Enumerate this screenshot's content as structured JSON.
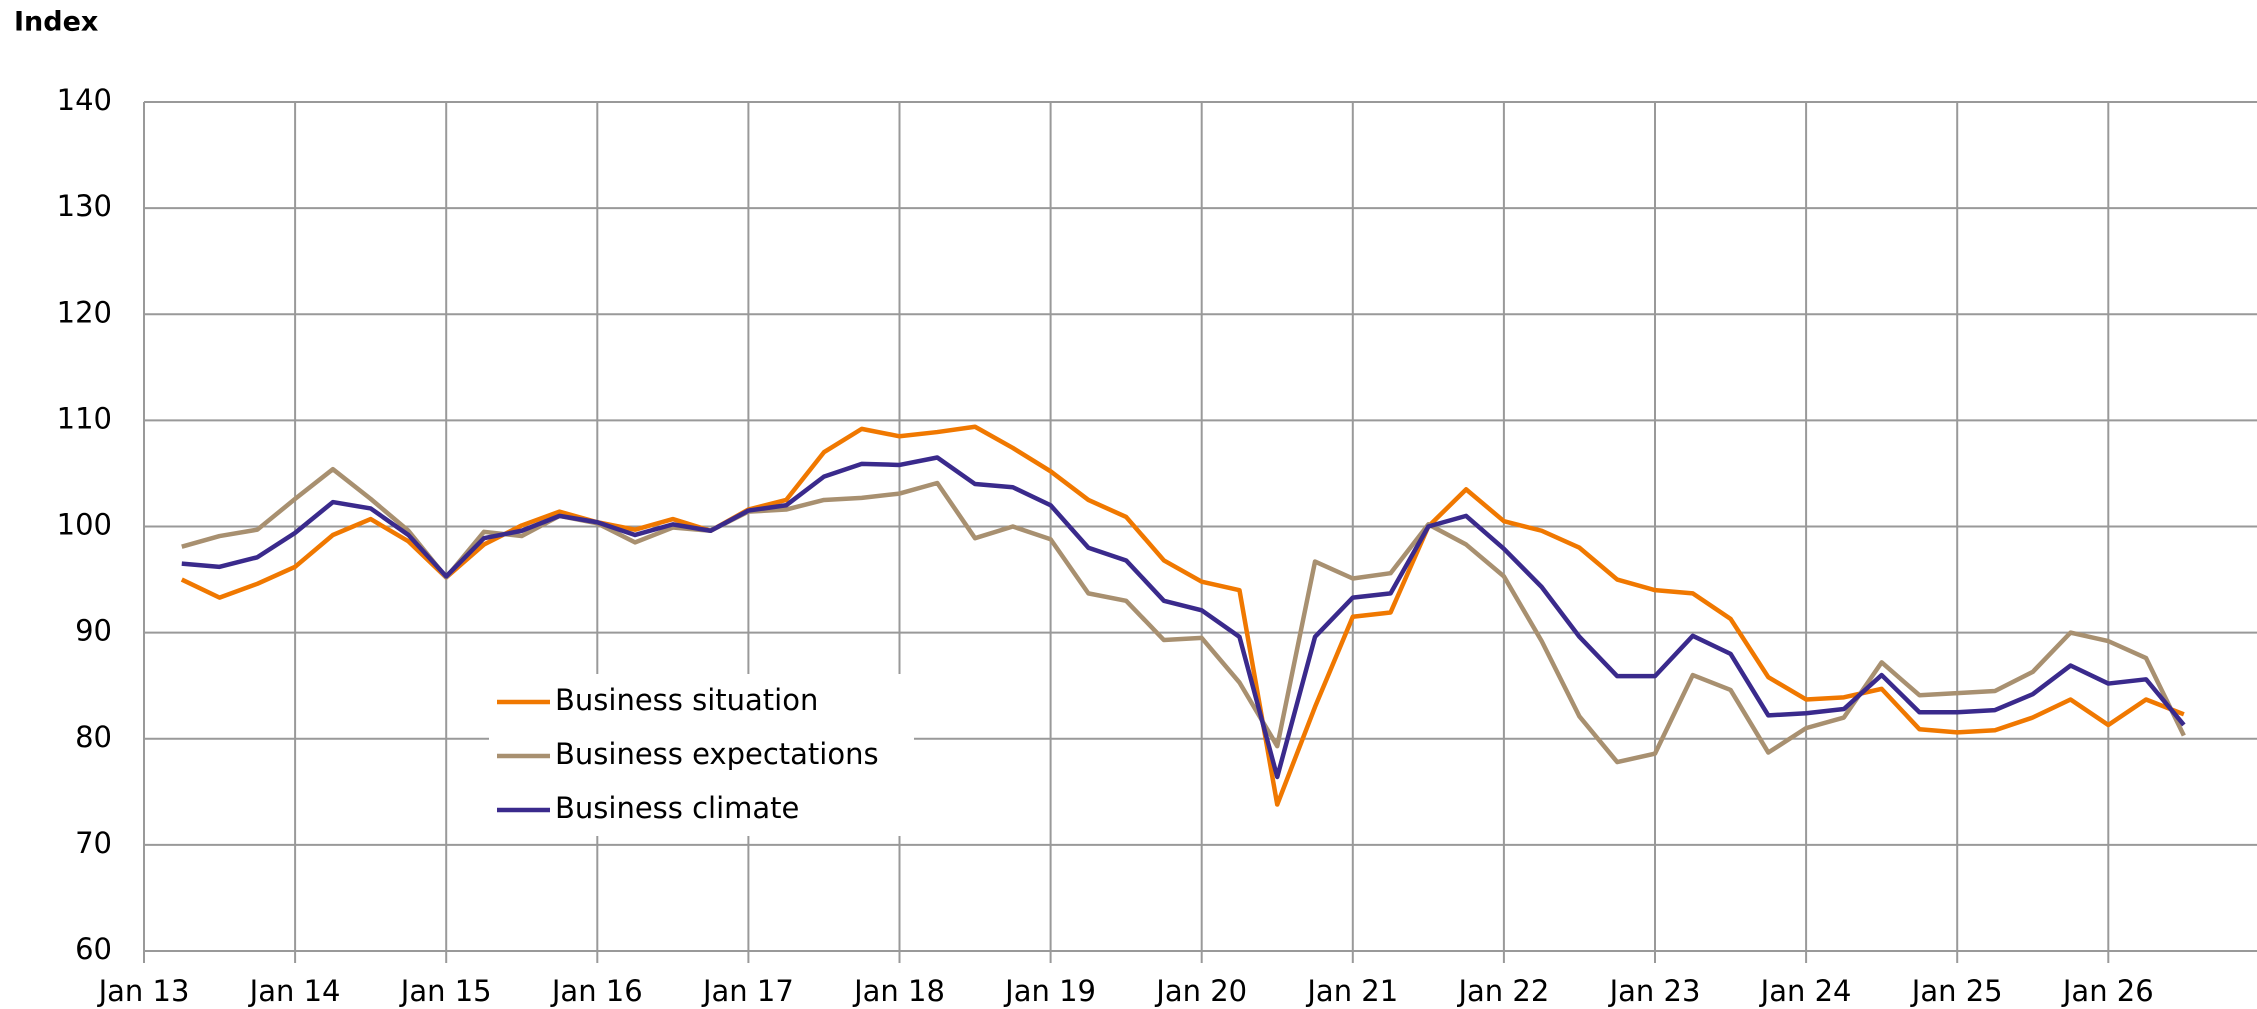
{
  "chart_data": {
    "type": "line",
    "y_axis_label": "Index",
    "x": [
      2013.25,
      2013.5,
      2013.75,
      2014,
      2014.25,
      2014.5,
      2014.75,
      2015,
      2015.25,
      2015.5,
      2015.75,
      2016,
      2016.25,
      2016.5,
      2016.75,
      2017,
      2017.25,
      2017.5,
      2017.75,
      2018,
      2018.25,
      2018.5,
      2018.75,
      2019,
      2019.25,
      2019.5,
      2019.75,
      2020,
      2020.25,
      2020.5,
      2020.75,
      2021,
      2021.25,
      2021.5,
      2021.75,
      2022,
      2022.25,
      2022.5,
      2022.75,
      2023,
      2023.25,
      2023.5,
      2023.75,
      2024,
      2024.25,
      2024.5,
      2024.75,
      2025,
      2025.25,
      2025.5,
      2025.75,
      2026,
      2026.25,
      2026.5
    ],
    "series": [
      {
        "name": "Business situation",
        "color": "#f07800",
        "values": [
          95,
          93.3,
          94.6,
          96.2,
          99.2,
          100.7,
          98.6,
          95.2,
          98.3,
          100.1,
          101.4,
          100.4,
          99.7,
          100.7,
          99.6,
          101.6,
          102.5,
          107,
          109.2,
          108.5,
          108.9,
          109.4,
          107.4,
          105.2,
          102.5,
          100.9,
          96.8,
          94.8,
          94,
          73.8,
          83,
          91.5,
          91.9,
          100,
          103.5,
          100.5,
          99.6,
          98,
          95,
          94,
          93.7,
          91.3,
          85.8,
          83.7,
          83.9,
          84.7,
          80.9,
          80.6,
          80.8,
          82,
          83.7,
          81.3,
          83.7,
          82.3
        ]
      },
      {
        "name": "Business expectations",
        "color": "#a89070",
        "values": [
          98.1,
          99.1,
          99.7,
          102.6,
          105.4,
          102.6,
          99.6,
          95.2,
          99.5,
          99.1,
          101,
          100.3,
          98.5,
          99.9,
          99.6,
          101.4,
          101.6,
          102.5,
          102.7,
          103.1,
          104.1,
          98.9,
          100,
          98.8,
          93.7,
          93,
          89.3,
          89.5,
          85.3,
          79.3,
          96.7,
          95.1,
          95.6,
          100.2,
          98.3,
          95.3,
          89.2,
          82.1,
          77.8,
          78.6,
          86,
          84.6,
          78.7,
          81,
          82,
          87.2,
          84.1,
          84.3,
          84.5,
          86.3,
          90,
          89.2,
          87.6,
          80.3
        ]
      },
      {
        "name": "Business climate",
        "color": "#3a2a8c",
        "values": [
          96.5,
          96.2,
          97.1,
          99.4,
          102.3,
          101.7,
          99.2,
          95.3,
          98.9,
          99.6,
          101,
          100.4,
          99.2,
          100.2,
          99.6,
          101.5,
          102,
          104.7,
          105.9,
          105.8,
          106.5,
          104,
          103.7,
          102,
          98,
          96.8,
          93,
          92.1,
          89.6,
          76.4,
          89.6,
          93.3,
          93.7,
          100,
          101,
          97.9,
          94.3,
          89.6,
          85.9,
          85.9,
          89.7,
          88,
          82.2,
          82.4,
          82.8,
          86,
          82.5,
          82.5,
          82.7,
          84.2,
          86.9,
          85.2,
          85.6,
          81.3
        ]
      }
    ],
    "xlim": [
      2013,
      2027
    ],
    "xticks": [
      {
        "value": 2013,
        "label": "Jan 13"
      },
      {
        "value": 2014,
        "label": "Jan 14"
      },
      {
        "value": 2015,
        "label": "Jan 15"
      },
      {
        "value": 2016,
        "label": "Jan 16"
      },
      {
        "value": 2017,
        "label": "Jan 17"
      },
      {
        "value": 2018,
        "label": "Jan 18"
      },
      {
        "value": 2019,
        "label": "Jan 19"
      },
      {
        "value": 2020,
        "label": "Jan 20"
      },
      {
        "value": 2021,
        "label": "Jan 21"
      },
      {
        "value": 2022,
        "label": "Jan 22"
      },
      {
        "value": 2023,
        "label": "Jan 23"
      },
      {
        "value": 2024,
        "label": "Jan 24"
      },
      {
        "value": 2025,
        "label": "Jan 25"
      },
      {
        "value": 2026,
        "label": "Jan 26"
      }
    ],
    "ylim": [
      60,
      140
    ],
    "yticks": [
      60,
      70,
      80,
      90,
      100,
      110,
      120,
      130,
      140
    ],
    "grid": true
  }
}
